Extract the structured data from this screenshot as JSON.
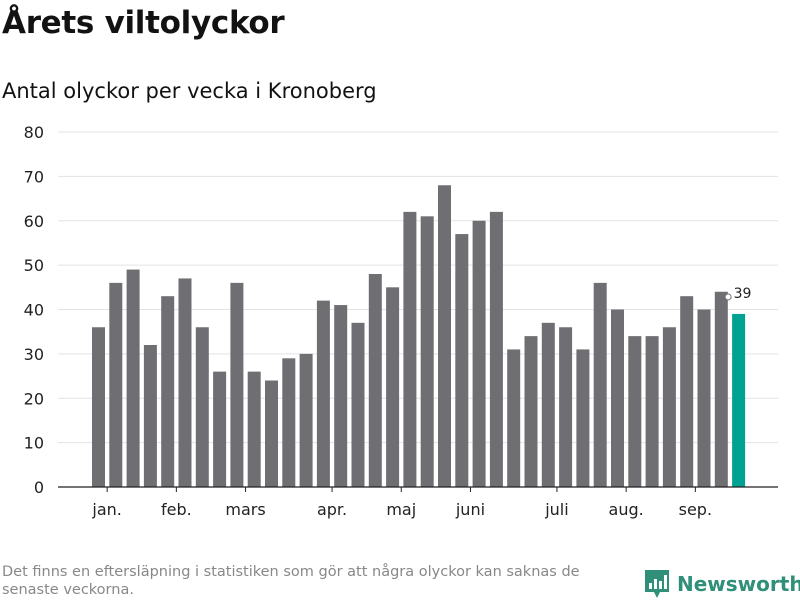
{
  "title": "Årets viltolyckor",
  "subtitle": "Antal olyckor per vecka i Kronoberg",
  "footnote": "Det finns en eftersläpning i statistiken som gör att några olyckor kan saknas de senaste veckorna.",
  "brand": {
    "name": "Newsworthy",
    "icon": "newsworthy-logo-icon",
    "color": "#2f8f78"
  },
  "colors": {
    "bar": "#6f6e73",
    "highlight": "#00a391",
    "grid": "#e3e3e3",
    "axis": "#222222"
  },
  "chart_data": {
    "type": "bar",
    "values": [
      36,
      46,
      49,
      32,
      43,
      47,
      36,
      26,
      46,
      26,
      24,
      29,
      30,
      42,
      41,
      37,
      48,
      45,
      62,
      61,
      68,
      57,
      60,
      62,
      31,
      34,
      37,
      36,
      31,
      46,
      40,
      34,
      34,
      36,
      43,
      40,
      44,
      39
    ],
    "highlight_last": true,
    "last_value_label": "39",
    "ylim": [
      0,
      80
    ],
    "yticks": [
      0,
      10,
      20,
      30,
      40,
      50,
      60,
      70,
      80
    ],
    "month_labels": [
      {
        "label": "jan.",
        "index": 0.5
      },
      {
        "label": "feb.",
        "index": 4.5
      },
      {
        "label": "mars",
        "index": 8.5
      },
      {
        "label": "apr.",
        "index": 13.5
      },
      {
        "label": "maj",
        "index": 17.5
      },
      {
        "label": "juni",
        "index": 21.5
      },
      {
        "label": "juli",
        "index": 26.5
      },
      {
        "label": "aug.",
        "index": 30.5
      },
      {
        "label": "sep.",
        "index": 34.5
      }
    ],
    "grid": true
  }
}
